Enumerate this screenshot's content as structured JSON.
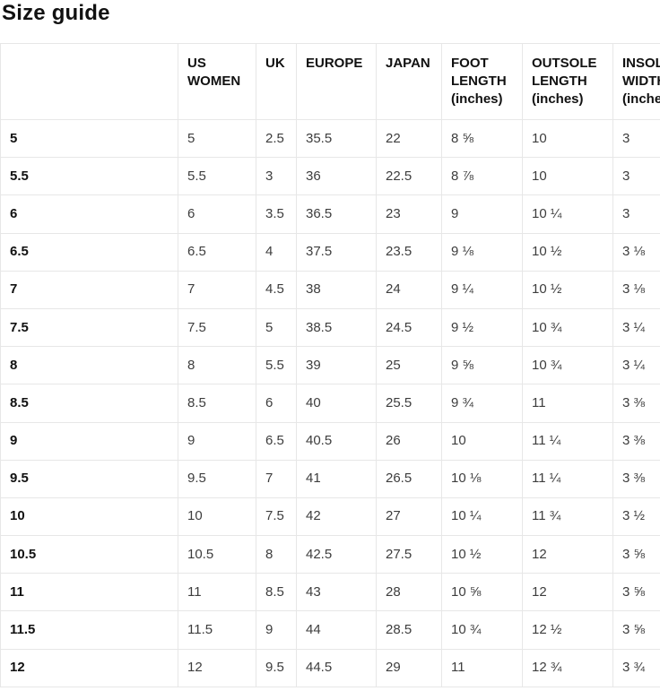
{
  "page": {
    "title": "Size guide"
  },
  "colors": {
    "background": "#ffffff",
    "border": "#e7e7e7",
    "text_primary": "#111111",
    "text_secondary": "#3d3d3d"
  },
  "table": {
    "columns": [
      {
        "key": "size",
        "label": ""
      },
      {
        "key": "us-women",
        "label": "US WOMEN"
      },
      {
        "key": "uk",
        "label": "UK"
      },
      {
        "key": "europe",
        "label": "EUROPE"
      },
      {
        "key": "japan",
        "label": "JAPAN"
      },
      {
        "key": "foot-length",
        "label": "FOOT LENGTH (inches)"
      },
      {
        "key": "outsole-length",
        "label": "OUTSOLE LENGTH (inches)"
      },
      {
        "key": "insole-width",
        "label": "INSOLE WIDTH (inches)"
      }
    ],
    "rows": [
      [
        "5",
        "5",
        "2.5",
        "35.5",
        "22",
        "8 ⅝",
        "10",
        "3"
      ],
      [
        "5.5",
        "5.5",
        "3",
        "36",
        "22.5",
        "8 ⅞",
        "10",
        "3"
      ],
      [
        "6",
        "6",
        "3.5",
        "36.5",
        "23",
        "9",
        "10 ¼",
        "3"
      ],
      [
        "6.5",
        "6.5",
        "4",
        "37.5",
        "23.5",
        "9 ⅛",
        "10 ½",
        "3 ⅛"
      ],
      [
        "7",
        "7",
        "4.5",
        "38",
        "24",
        "9 ¼",
        "10 ½",
        "3 ⅛"
      ],
      [
        "7.5",
        "7.5",
        "5",
        "38.5",
        "24.5",
        "9 ½",
        "10 ¾",
        "3 ¼"
      ],
      [
        "8",
        "8",
        "5.5",
        "39",
        "25",
        "9 ⅝",
        "10 ¾",
        "3 ¼"
      ],
      [
        "8.5",
        "8.5",
        "6",
        "40",
        "25.5",
        "9 ¾",
        "11",
        "3 ⅜"
      ],
      [
        "9",
        "9",
        "6.5",
        "40.5",
        "26",
        "10",
        "11 ¼",
        "3 ⅜"
      ],
      [
        "9.5",
        "9.5",
        "7",
        "41",
        "26.5",
        "10 ⅛",
        "11 ¼",
        "3 ⅜"
      ],
      [
        "10",
        "10",
        "7.5",
        "42",
        "27",
        "10 ¼",
        "11 ¾",
        "3 ½"
      ],
      [
        "10.5",
        "10.5",
        "8",
        "42.5",
        "27.5",
        "10 ½",
        "12",
        "3 ⅝"
      ],
      [
        "11",
        "11",
        "8.5",
        "43",
        "28",
        "10 ⅝",
        "12",
        "3 ⅝"
      ],
      [
        "11.5",
        "11.5",
        "9",
        "44",
        "28.5",
        "10 ¾",
        "12 ½",
        "3 ⅝"
      ],
      [
        "12",
        "12",
        "9.5",
        "44.5",
        "29",
        "11",
        "12 ¾",
        "3 ¾"
      ]
    ]
  }
}
